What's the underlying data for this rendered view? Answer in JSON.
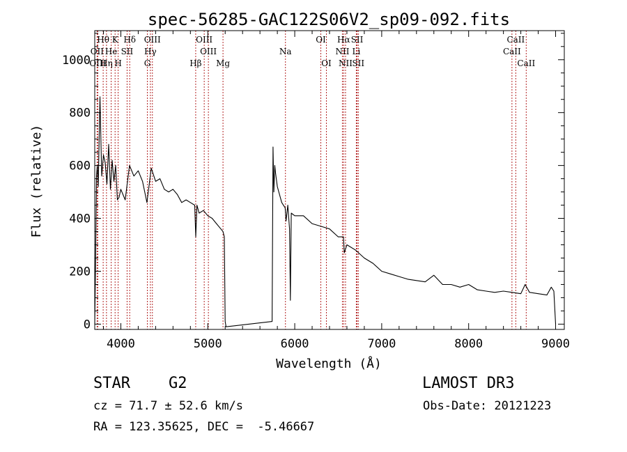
{
  "chart_data": {
    "type": "line",
    "title": "spec-56285-GAC122S06V2_sp09-092.fits",
    "xlabel": "Wavelength (Å)",
    "ylabel": "Flux (relative)",
    "xlim": [
      3700,
      9100
    ],
    "ylim": [
      -20,
      1110
    ],
    "xticks": [
      4000,
      5000,
      6000,
      7000,
      8000,
      9000
    ],
    "xtick_labels": [
      "4000",
      "5000",
      "6000",
      "7000",
      "8000",
      "9000"
    ],
    "yticks": [
      0,
      200,
      400,
      600,
      800,
      1000
    ],
    "ytick_labels": [
      "0",
      "200",
      "400",
      "600",
      "800",
      "1000"
    ],
    "grid": false,
    "series": [
      {
        "name": "spectrum",
        "color": "#000000",
        "x": [
          3700,
          3710,
          3720,
          3730,
          3740,
          3760,
          3780,
          3800,
          3820,
          3840,
          3860,
          3880,
          3900,
          3920,
          3940,
          3960,
          3980,
          4000,
          4050,
          4100,
          4150,
          4200,
          4250,
          4300,
          4350,
          4400,
          4450,
          4500,
          4550,
          4600,
          4650,
          4700,
          4750,
          4800,
          4850,
          4862,
          4875,
          4900,
          4950,
          5000,
          5050,
          5100,
          5150,
          5175,
          5190,
          5200,
          5210,
          5740,
          5750,
          5760,
          5770,
          5780,
          5800,
          5850,
          5890,
          5900,
          5920,
          5940,
          5950,
          5960,
          6000,
          6100,
          6200,
          6300,
          6400,
          6500,
          6560,
          6570,
          6600,
          6700,
          6800,
          6900,
          7000,
          7100,
          7200,
          7300,
          7400,
          7500,
          7600,
          7700,
          7800,
          7900,
          8000,
          8100,
          8200,
          8300,
          8400,
          8500,
          8600,
          8650,
          8700,
          8800,
          8900,
          8950,
          8980,
          9000
        ],
        "y": [
          0,
          240,
          560,
          600,
          520,
          860,
          560,
          640,
          610,
          530,
          680,
          510,
          620,
          540,
          600,
          470,
          480,
          510,
          470,
          600,
          560,
          580,
          540,
          460,
          590,
          540,
          550,
          510,
          500,
          510,
          490,
          460,
          470,
          460,
          450,
          330,
          450,
          420,
          430,
          410,
          400,
          380,
          360,
          350,
          330,
          10,
          -10,
          10,
          670,
          500,
          600,
          570,
          520,
          460,
          440,
          390,
          450,
          360,
          90,
          420,
          410,
          410,
          380,
          370,
          360,
          330,
          330,
          270,
          300,
          280,
          250,
          230,
          200,
          190,
          180,
          170,
          165,
          160,
          185,
          150,
          150,
          140,
          150,
          130,
          125,
          120,
          125,
          120,
          115,
          150,
          120,
          115,
          110,
          140,
          125,
          0
        ]
      }
    ],
    "line_markers": [
      {
        "label": "Hθ",
        "x": 3797,
        "row": 0
      },
      {
        "label": "OII",
        "x": 3727,
        "row": 1
      },
      {
        "label": "OIII",
        "x": 3735,
        "row": 2
      },
      {
        "label": "K",
        "x": 3934,
        "row": 0
      },
      {
        "label": "He",
        "x": 3889,
        "row": 1
      },
      {
        "label": "Hη",
        "x": 3835,
        "row": 2
      },
      {
        "label": "SII",
        "x": 4072,
        "row": 1
      },
      {
        "label": "H",
        "x": 3969,
        "row": 2
      },
      {
        "label": "Hδ",
        "x": 4102,
        "row": 0
      },
      {
        "label": "OIII",
        "x": 4363,
        "row": 0
      },
      {
        "label": "Hγ",
        "x": 4340,
        "row": 1
      },
      {
        "label": "G",
        "x": 4305,
        "row": 2
      },
      {
        "label": "OIII",
        "x": 4959,
        "row": 0
      },
      {
        "label": "OIII",
        "x": 5007,
        "row": 1
      },
      {
        "label": "Hβ",
        "x": 4861,
        "row": 2
      },
      {
        "label": "Mg",
        "x": 5175,
        "row": 2
      },
      {
        "label": "Na",
        "x": 5893,
        "row": 1
      },
      {
        "label": "OI",
        "x": 6300,
        "row": 0
      },
      {
        "label": "OI",
        "x": 6364,
        "row": 2
      },
      {
        "label": "Hα",
        "x": 6563,
        "row": 0
      },
      {
        "label": "NII",
        "x": 6548,
        "row": 1
      },
      {
        "label": "NII",
        "x": 6584,
        "row": 2
      },
      {
        "label": "SII",
        "x": 6717,
        "row": 0
      },
      {
        "label": "Li",
        "x": 6708,
        "row": 1
      },
      {
        "label": "SII",
        "x": 6731,
        "row": 2
      },
      {
        "label": "CaII",
        "x": 8542,
        "row": 0
      },
      {
        "label": "CaII",
        "x": 8498,
        "row": 1
      },
      {
        "label": "CaII",
        "x": 8662,
        "row": 2
      }
    ],
    "marker_color": "#b22222"
  },
  "info": {
    "class_label": "STAR",
    "subclass": "G2",
    "survey": "LAMOST DR3",
    "cz": "cz = 71.7 ± 52.6 km/s",
    "obs_date": "Obs-Date: 20121223",
    "radec": "RA = 123.35625, DEC =  -5.46667"
  }
}
